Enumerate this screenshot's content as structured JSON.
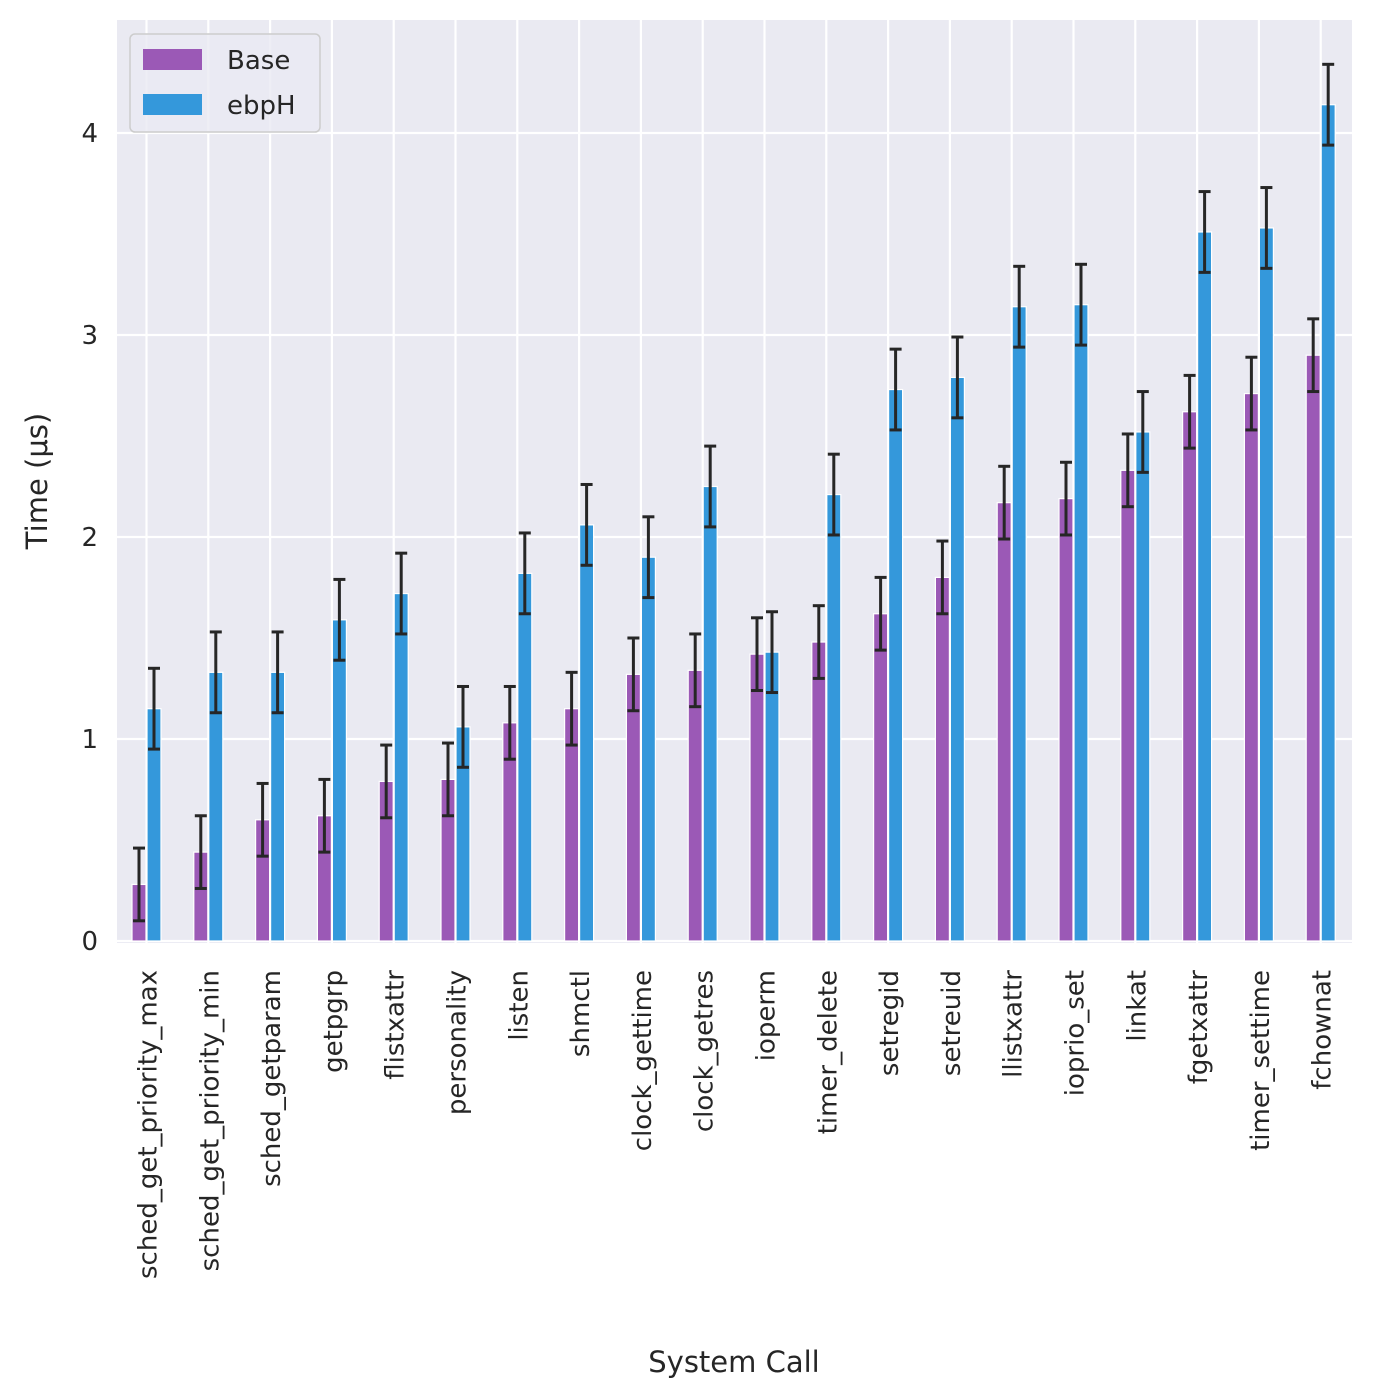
{
  "chart_data": {
    "type": "bar",
    "xlabel": "System Call",
    "ylabel": "Time (μs)",
    "ylim": [
      0,
      4.55
    ],
    "yticks": [
      0,
      1,
      2,
      3,
      4
    ],
    "grid": true,
    "legend_position": "top-left",
    "categories": [
      "sched_get_priority_max",
      "sched_get_priority_min",
      "sched_getparam",
      "getpgrp",
      "flistxattr",
      "personality",
      "listen",
      "shmctl",
      "clock_gettime",
      "clock_getres",
      "ioperm",
      "timer_delete",
      "setregid",
      "setreuid",
      "llistxattr",
      "ioprio_set",
      "linkat",
      "fgetxattr",
      "timer_settime",
      "fchownat"
    ],
    "series": [
      {
        "name": "Base",
        "color": "#9b59b6",
        "values": [
          0.28,
          0.44,
          0.6,
          0.62,
          0.79,
          0.8,
          1.08,
          1.15,
          1.32,
          1.34,
          1.42,
          1.48,
          1.62,
          1.8,
          2.17,
          2.19,
          2.33,
          2.62,
          2.71,
          2.9
        ],
        "errors": [
          0.18,
          0.18,
          0.18,
          0.18,
          0.18,
          0.18,
          0.18,
          0.18,
          0.18,
          0.18,
          0.18,
          0.18,
          0.18,
          0.18,
          0.18,
          0.18,
          0.18,
          0.18,
          0.18,
          0.18
        ]
      },
      {
        "name": "ebpH",
        "color": "#3498db",
        "values": [
          1.15,
          1.33,
          1.33,
          1.59,
          1.72,
          1.06,
          1.82,
          2.06,
          1.9,
          2.25,
          1.43,
          2.21,
          2.73,
          2.79,
          3.14,
          3.15,
          2.52,
          3.51,
          3.53,
          4.14
        ],
        "errors": [
          0.2,
          0.2,
          0.2,
          0.2,
          0.2,
          0.2,
          0.2,
          0.2,
          0.2,
          0.2,
          0.2,
          0.2,
          0.2,
          0.2,
          0.2,
          0.2,
          0.2,
          0.2,
          0.2,
          0.2
        ]
      }
    ]
  },
  "colors": {
    "plot_background": "#eaeaf2",
    "grid": "#ffffff",
    "error_bar": "#262626",
    "text": "#262626"
  }
}
